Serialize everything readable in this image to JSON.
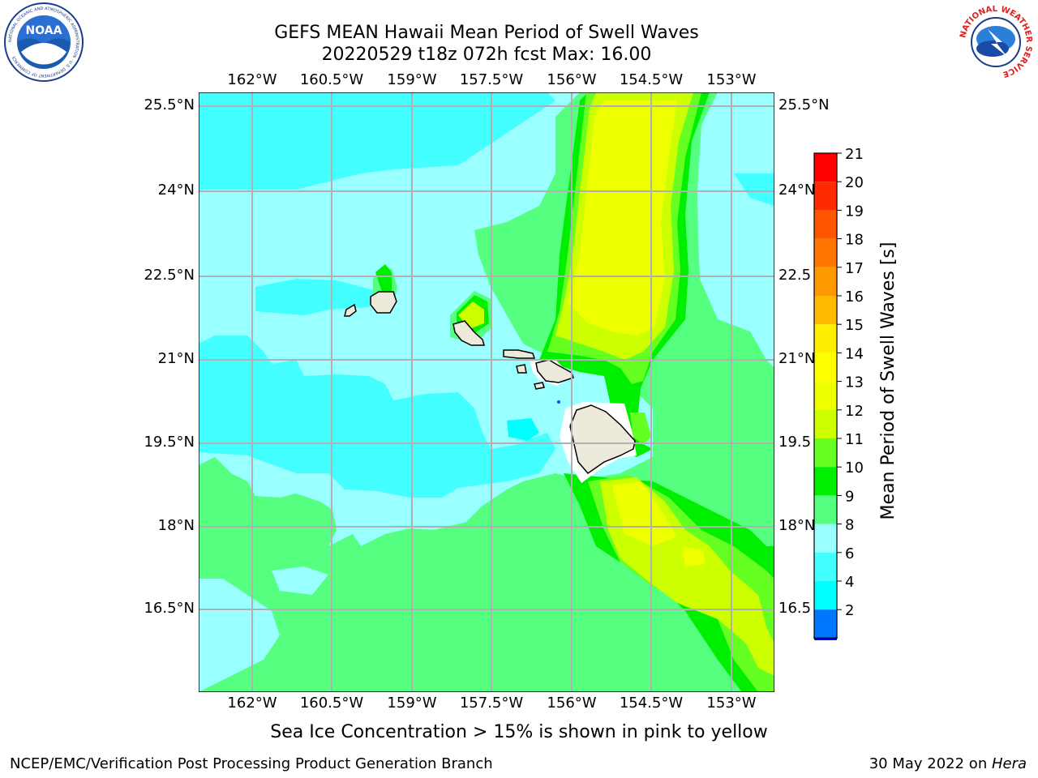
{
  "title": {
    "line1": "GEFS MEAN Hawaii Mean Period of Swell Waves",
    "line2": "20220529 t18z 072h fcst   Max: 16.00"
  },
  "map": {
    "lon_labels": [
      "162°W",
      "160.5°W",
      "159°W",
      "157.5°W",
      "156°W",
      "154.5°W",
      "153°W"
    ],
    "lat_labels": [
      "25.5°N",
      "24°N",
      "22.5°N",
      "21°N",
      "19.5°N",
      "18°N",
      "16.5°N"
    ],
    "lat_labels_right": [
      "25.5°N",
      "24°N",
      "22.5",
      "21°N",
      "19.5",
      "18°N",
      "16.5"
    ],
    "fill_colors": {
      "4_6": "#00ffff",
      "6_8": "#44ffff",
      "8_9": "#99ffff",
      "9_10": "#55ff7f",
      "10_11": "#00ee00",
      "11_12": "#66ff22",
      "12_13": "#ccff00",
      "13_14": "#eeff00",
      "14_15": "#ffff00",
      "land": "#eeeadb"
    },
    "icons": {
      "noaa_logo": "noaa-logo",
      "nws_logo": "nws-logo",
      "noaa_logo_text": "NOAA",
      "noaa_ring_text": "NATIONAL OCEANIC AND ATMOSPHERIC ADMINISTRATION · U.S. DEPARTMENT OF COMMERCE",
      "nws_ring_text": "NATIONAL WEATHER SERVICE"
    }
  },
  "colorbar": {
    "label": "Mean Period of Swell Waves [s]",
    "ticks": [
      "21",
      "20",
      "19",
      "18",
      "17",
      "16",
      "15",
      "14",
      "13",
      "12",
      "11",
      "10",
      "9",
      "8",
      "6",
      "4",
      "2"
    ],
    "colors": [
      "#ff0000",
      "#ff2a00",
      "#ff5500",
      "#ff7700",
      "#ff9900",
      "#ffbb00",
      "#ffee00",
      "#ffff00",
      "#eeff00",
      "#ccff00",
      "#66ff22",
      "#00ee00",
      "#55ff7f",
      "#99ffff",
      "#44ffff",
      "#00ffff",
      "#0077ff"
    ],
    "under_color": "#0000ee"
  },
  "caption": "Sea Ice Concentration > 15% is shown in pink to yellow",
  "footer": {
    "left": "NCEP/EMC/Verification Post Processing Product Generation Branch",
    "right_date": "30 May 2022 on ",
    "right_machine": "Hera"
  }
}
